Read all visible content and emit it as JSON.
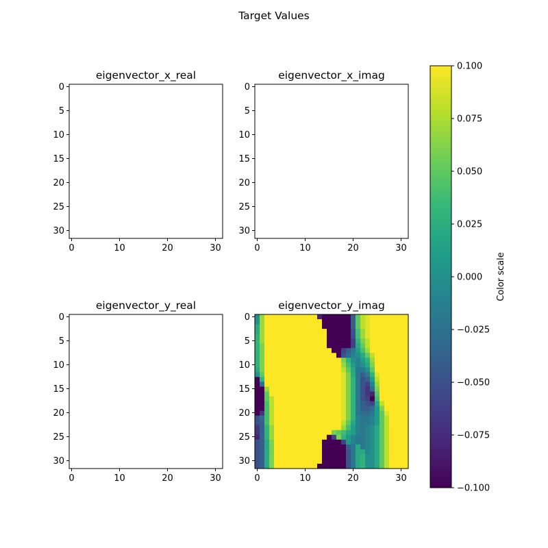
{
  "figure": {
    "suptitle": "Target Values"
  },
  "chart_data": [
    {
      "type": "heatmap",
      "title": "eigenvector_x_real",
      "grid_size": 32,
      "xticks": [
        0,
        10,
        20,
        30
      ],
      "yticks": [
        0,
        5,
        10,
        15,
        20,
        25,
        30
      ],
      "empty": true,
      "values": []
    },
    {
      "type": "heatmap",
      "title": "eigenvector_x_imag",
      "grid_size": 32,
      "xticks": [
        0,
        10,
        20,
        30
      ],
      "yticks": [
        0,
        5,
        10,
        15,
        20,
        25,
        30
      ],
      "empty": true,
      "values": []
    },
    {
      "type": "heatmap",
      "title": "eigenvector_y_real",
      "grid_size": 32,
      "xticks": [
        0,
        10,
        20,
        30
      ],
      "yticks": [
        0,
        5,
        10,
        15,
        20,
        25,
        30
      ],
      "empty": true,
      "values": []
    },
    {
      "type": "heatmap",
      "title": "eigenvector_y_imag",
      "grid_size": 32,
      "xticks": [
        0,
        10,
        20,
        30
      ],
      "yticks": [
        0,
        5,
        10,
        15,
        20,
        25,
        30
      ],
      "empty": false,
      "value_range": [
        -0.1,
        0.1
      ],
      "description": "32x32 grid of values clipped to [-0.1, 0.1]",
      "values": [
        [
          0.0,
          0.07,
          0.1,
          0.1,
          0.1,
          0.1,
          0.1,
          0.1,
          0.1,
          0.1,
          0.1,
          0.1,
          0.1,
          -0.08,
          -0.1,
          -0.1,
          -0.1,
          -0.1,
          -0.1,
          -0.1,
          -0.04,
          0.05,
          0.08,
          0.09,
          0.1,
          0.1,
          0.1,
          0.1,
          0.1,
          0.1,
          0.1,
          0.1
        ],
        [
          0.0,
          0.07,
          0.1,
          0.1,
          0.1,
          0.1,
          0.1,
          0.1,
          0.1,
          0.1,
          0.1,
          0.1,
          0.1,
          0.1,
          -0.1,
          -0.1,
          -0.1,
          -0.1,
          -0.1,
          -0.1,
          -0.04,
          0.05,
          0.08,
          0.09,
          0.1,
          0.1,
          0.1,
          0.1,
          0.1,
          0.1,
          0.1,
          0.1
        ],
        [
          0.02,
          0.07,
          0.1,
          0.1,
          0.1,
          0.1,
          0.1,
          0.1,
          0.1,
          0.1,
          0.1,
          0.1,
          0.1,
          0.1,
          -0.1,
          -0.1,
          -0.1,
          -0.1,
          -0.1,
          -0.1,
          -0.04,
          0.05,
          0.08,
          0.09,
          0.1,
          0.1,
          0.1,
          0.1,
          0.1,
          0.1,
          0.1,
          0.1
        ],
        [
          0.02,
          0.07,
          0.1,
          0.1,
          0.1,
          0.1,
          0.1,
          0.1,
          0.1,
          0.1,
          0.1,
          0.1,
          0.1,
          0.1,
          0.1,
          -0.1,
          -0.1,
          -0.1,
          -0.1,
          -0.1,
          -0.05,
          0.04,
          0.07,
          0.09,
          0.1,
          0.1,
          0.1,
          0.1,
          0.1,
          0.1,
          0.1,
          0.1
        ],
        [
          0.03,
          0.07,
          0.1,
          0.1,
          0.1,
          0.1,
          0.1,
          0.1,
          0.1,
          0.1,
          0.1,
          0.1,
          0.1,
          0.1,
          0.1,
          -0.1,
          -0.1,
          -0.1,
          -0.1,
          -0.1,
          -0.05,
          0.04,
          0.07,
          0.09,
          0.1,
          0.1,
          0.1,
          0.1,
          0.1,
          0.1,
          0.1,
          0.1
        ],
        [
          0.03,
          0.07,
          0.1,
          0.1,
          0.1,
          0.1,
          0.1,
          0.1,
          0.1,
          0.1,
          0.1,
          0.1,
          0.1,
          0.1,
          0.1,
          -0.1,
          -0.1,
          -0.1,
          -0.1,
          -0.1,
          -0.06,
          0.03,
          0.06,
          0.08,
          0.1,
          0.1,
          0.1,
          0.1,
          0.1,
          0.1,
          0.1,
          0.1
        ],
        [
          0.03,
          0.06,
          0.1,
          0.1,
          0.1,
          0.1,
          0.1,
          0.1,
          0.1,
          0.1,
          0.1,
          0.1,
          0.1,
          0.1,
          0.1,
          -0.1,
          -0.1,
          -0.1,
          -0.1,
          -0.1,
          -0.06,
          0.02,
          0.05,
          0.08,
          0.1,
          0.1,
          0.1,
          0.1,
          0.1,
          0.1,
          0.1,
          0.1
        ],
        [
          0.03,
          0.06,
          0.1,
          0.1,
          0.1,
          0.1,
          0.1,
          0.1,
          0.1,
          0.1,
          0.1,
          0.1,
          0.1,
          0.1,
          0.1,
          0.1,
          -0.1,
          -0.1,
          -0.06,
          -0.04,
          -0.02,
          0.01,
          0.04,
          0.07,
          0.1,
          0.1,
          0.1,
          0.1,
          0.1,
          0.1,
          0.1,
          0.1
        ],
        [
          0.03,
          0.06,
          0.1,
          0.1,
          0.1,
          0.1,
          0.1,
          0.1,
          0.1,
          0.1,
          0.1,
          0.1,
          0.1,
          0.1,
          0.1,
          0.1,
          0.1,
          -0.1,
          -0.05,
          -0.03,
          -0.01,
          0.0,
          0.02,
          0.05,
          0.08,
          0.1,
          0.1,
          0.1,
          0.1,
          0.1,
          0.1,
          0.1
        ],
        [
          0.03,
          0.06,
          0.1,
          0.1,
          0.1,
          0.1,
          0.1,
          0.1,
          0.1,
          0.1,
          0.1,
          0.1,
          0.1,
          0.1,
          0.1,
          0.1,
          0.1,
          0.1,
          0.06,
          0.03,
          0.0,
          -0.01,
          0.01,
          0.03,
          0.07,
          0.1,
          0.1,
          0.1,
          0.1,
          0.1,
          0.1,
          0.1
        ],
        [
          0.03,
          0.06,
          0.1,
          0.1,
          0.1,
          0.1,
          0.1,
          0.1,
          0.1,
          0.1,
          0.1,
          0.1,
          0.1,
          0.1,
          0.1,
          0.1,
          0.1,
          0.1,
          0.07,
          0.04,
          0.01,
          -0.01,
          0.0,
          0.02,
          0.06,
          0.1,
          0.1,
          0.1,
          0.1,
          0.1,
          0.1,
          0.1
        ],
        [
          0.02,
          0.06,
          0.1,
          0.1,
          0.1,
          0.1,
          0.1,
          0.1,
          0.1,
          0.1,
          0.1,
          0.1,
          0.1,
          0.1,
          0.1,
          0.1,
          0.1,
          0.1,
          0.08,
          0.05,
          0.02,
          -0.02,
          -0.02,
          0.0,
          0.05,
          0.1,
          0.1,
          0.1,
          0.1,
          0.1,
          0.1,
          0.1
        ],
        [
          0.0,
          0.05,
          0.1,
          0.1,
          0.1,
          0.1,
          0.1,
          0.1,
          0.1,
          0.1,
          0.1,
          0.1,
          0.1,
          0.1,
          0.1,
          0.1,
          0.1,
          0.1,
          0.09,
          0.06,
          0.02,
          -0.02,
          -0.04,
          -0.02,
          0.03,
          0.09,
          0.1,
          0.1,
          0.1,
          0.1,
          0.1,
          0.1
        ],
        [
          -0.1,
          0.03,
          0.1,
          0.1,
          0.1,
          0.1,
          0.1,
          0.1,
          0.1,
          0.1,
          0.1,
          0.1,
          0.1,
          0.1,
          0.1,
          0.1,
          0.1,
          0.1,
          0.09,
          0.06,
          0.03,
          -0.02,
          -0.05,
          -0.04,
          0.01,
          0.08,
          0.1,
          0.1,
          0.1,
          0.1,
          0.1,
          0.1
        ],
        [
          -0.1,
          -0.03,
          0.1,
          0.1,
          0.1,
          0.1,
          0.1,
          0.1,
          0.1,
          0.1,
          0.1,
          0.1,
          0.1,
          0.1,
          0.1,
          0.1,
          0.1,
          0.1,
          0.09,
          0.06,
          0.03,
          -0.02,
          -0.05,
          -0.06,
          -0.01,
          0.07,
          0.1,
          0.1,
          0.1,
          0.1,
          0.1,
          0.1
        ],
        [
          -0.1,
          -0.1,
          0.07,
          0.1,
          0.1,
          0.1,
          0.1,
          0.1,
          0.1,
          0.1,
          0.1,
          0.1,
          0.1,
          0.1,
          0.1,
          0.1,
          0.1,
          0.1,
          0.09,
          0.06,
          0.03,
          -0.02,
          -0.05,
          -0.07,
          -0.03,
          0.06,
          0.1,
          0.1,
          0.1,
          0.1,
          0.1,
          0.1
        ],
        [
          -0.1,
          -0.1,
          0.05,
          0.1,
          0.1,
          0.1,
          0.1,
          0.1,
          0.1,
          0.1,
          0.1,
          0.1,
          0.1,
          0.1,
          0.1,
          0.1,
          0.1,
          0.1,
          0.09,
          0.06,
          0.03,
          -0.02,
          -0.05,
          -0.07,
          -0.08,
          0.05,
          0.1,
          0.1,
          0.1,
          0.1,
          0.1,
          0.1
        ],
        [
          -0.1,
          -0.1,
          0.05,
          0.08,
          0.1,
          0.1,
          0.1,
          0.1,
          0.1,
          0.1,
          0.1,
          0.1,
          0.1,
          0.1,
          0.1,
          0.1,
          0.1,
          0.1,
          0.09,
          0.06,
          0.03,
          -0.02,
          -0.05,
          -0.06,
          -0.1,
          0.04,
          0.1,
          0.1,
          0.1,
          0.1,
          0.1,
          0.1
        ],
        [
          -0.1,
          -0.1,
          0.04,
          0.08,
          0.1,
          0.1,
          0.1,
          0.1,
          0.1,
          0.1,
          0.1,
          0.1,
          0.1,
          0.1,
          0.1,
          0.1,
          0.1,
          0.1,
          0.09,
          0.06,
          0.03,
          -0.02,
          -0.04,
          -0.05,
          -0.06,
          0.02,
          0.08,
          0.1,
          0.1,
          0.1,
          0.1,
          0.1
        ],
        [
          -0.1,
          -0.1,
          0.04,
          0.08,
          0.1,
          0.1,
          0.1,
          0.1,
          0.1,
          0.1,
          0.1,
          0.1,
          0.1,
          0.1,
          0.1,
          0.1,
          0.1,
          0.1,
          0.09,
          0.06,
          0.03,
          -0.02,
          -0.04,
          -0.04,
          -0.03,
          0.01,
          0.06,
          0.1,
          0.1,
          0.1,
          0.1,
          0.1
        ],
        [
          -0.1,
          -0.07,
          0.04,
          0.08,
          0.1,
          0.1,
          0.1,
          0.1,
          0.1,
          0.1,
          0.1,
          0.1,
          0.1,
          0.1,
          0.1,
          0.1,
          0.1,
          0.1,
          0.09,
          0.06,
          0.03,
          -0.02,
          -0.03,
          -0.03,
          -0.02,
          0.01,
          0.05,
          0.09,
          0.1,
          0.1,
          0.1,
          0.1
        ],
        [
          -0.05,
          -0.03,
          0.04,
          0.08,
          0.1,
          0.1,
          0.1,
          0.1,
          0.1,
          0.1,
          0.1,
          0.1,
          0.1,
          0.1,
          0.1,
          0.1,
          0.1,
          0.1,
          0.09,
          0.06,
          0.03,
          -0.01,
          -0.02,
          -0.02,
          -0.01,
          0.01,
          0.05,
          0.08,
          0.1,
          0.1,
          0.1,
          0.1
        ],
        [
          -0.05,
          -0.04,
          0.04,
          0.08,
          0.1,
          0.1,
          0.1,
          0.1,
          0.1,
          0.1,
          0.1,
          0.1,
          0.1,
          0.1,
          0.1,
          0.1,
          0.1,
          0.1,
          0.08,
          0.05,
          0.02,
          -0.01,
          -0.02,
          -0.02,
          -0.01,
          0.01,
          0.05,
          0.08,
          0.1,
          0.1,
          0.1,
          0.1
        ],
        [
          -0.07,
          -0.04,
          0.03,
          0.07,
          0.1,
          0.1,
          0.1,
          0.1,
          0.1,
          0.1,
          0.1,
          0.1,
          0.1,
          0.1,
          0.1,
          0.1,
          0.1,
          0.1,
          0.07,
          0.04,
          0.01,
          -0.01,
          -0.02,
          -0.01,
          0.0,
          0.02,
          0.05,
          0.08,
          0.1,
          0.1,
          0.1,
          0.1
        ],
        [
          -0.07,
          -0.04,
          0.03,
          0.07,
          0.1,
          0.1,
          0.1,
          0.1,
          0.1,
          0.1,
          0.1,
          0.1,
          0.1,
          0.1,
          0.1,
          0.1,
          0.06,
          0.05,
          0.04,
          0.02,
          0.01,
          -0.01,
          -0.02,
          -0.01,
          0.0,
          0.02,
          0.05,
          0.08,
          0.1,
          0.1,
          0.1,
          0.1
        ],
        [
          -0.08,
          -0.04,
          0.03,
          0.07,
          0.1,
          0.1,
          0.1,
          0.1,
          0.1,
          0.1,
          0.1,
          0.1,
          0.1,
          0.1,
          0.1,
          -0.1,
          -0.06,
          0.06,
          0.03,
          0.01,
          -0.01,
          -0.02,
          -0.02,
          -0.01,
          0.0,
          0.02,
          0.05,
          0.08,
          0.1,
          0.1,
          0.1,
          0.1
        ],
        [
          -0.05,
          -0.04,
          0.02,
          0.06,
          0.1,
          0.1,
          0.1,
          0.1,
          0.1,
          0.1,
          0.1,
          0.1,
          0.1,
          0.1,
          -0.1,
          -0.1,
          -0.1,
          -0.1,
          -0.06,
          0.01,
          -0.01,
          -0.02,
          -0.02,
          -0.01,
          0.0,
          0.02,
          0.05,
          0.08,
          0.1,
          0.1,
          0.1,
          0.1
        ],
        [
          -0.05,
          -0.04,
          0.02,
          0.06,
          0.1,
          0.1,
          0.1,
          0.1,
          0.1,
          0.1,
          0.1,
          0.1,
          0.1,
          0.1,
          -0.1,
          -0.1,
          -0.1,
          -0.1,
          -0.1,
          -0.04,
          -0.02,
          0.02,
          -0.02,
          -0.01,
          0.0,
          0.02,
          0.05,
          0.08,
          0.1,
          0.1,
          0.1,
          0.1
        ],
        [
          -0.05,
          -0.04,
          0.02,
          0.06,
          0.1,
          0.1,
          0.1,
          0.1,
          0.1,
          0.1,
          0.1,
          0.1,
          0.1,
          0.1,
          -0.1,
          -0.1,
          -0.1,
          -0.1,
          -0.1,
          -0.05,
          -0.02,
          0.02,
          0.02,
          -0.01,
          0.0,
          0.02,
          0.05,
          0.08,
          0.1,
          0.1,
          0.1,
          0.1
        ],
        [
          -0.05,
          -0.04,
          0.02,
          0.06,
          0.1,
          0.1,
          0.1,
          0.1,
          0.1,
          0.1,
          0.1,
          0.1,
          0.1,
          0.1,
          -0.1,
          -0.1,
          -0.1,
          -0.1,
          -0.1,
          -0.05,
          -0.02,
          0.02,
          0.03,
          0.0,
          0.0,
          0.02,
          0.05,
          0.08,
          0.1,
          0.1,
          0.1,
          0.1
        ],
        [
          -0.05,
          -0.04,
          0.02,
          0.06,
          0.1,
          0.1,
          0.1,
          0.1,
          0.1,
          0.1,
          0.1,
          0.1,
          0.1,
          0.1,
          -0.1,
          -0.1,
          -0.1,
          -0.1,
          -0.1,
          -0.05,
          -0.02,
          0.02,
          0.03,
          0.0,
          0.0,
          0.02,
          0.05,
          0.08,
          0.1,
          0.1,
          0.1,
          0.1
        ],
        [
          -0.05,
          -0.04,
          0.02,
          0.06,
          0.1,
          0.1,
          0.1,
          0.1,
          0.1,
          0.1,
          0.1,
          0.1,
          0.1,
          -0.1,
          -0.1,
          -0.1,
          -0.1,
          -0.1,
          -0.1,
          -0.05,
          -0.02,
          0.02,
          0.03,
          0.0,
          0.0,
          0.02,
          0.05,
          0.08,
          0.1,
          0.1,
          0.1,
          0.1
        ]
      ]
    }
  ],
  "colorbar": {
    "label": "Color scale",
    "min": -0.1,
    "max": 0.1,
    "tick_values": [
      -0.1,
      -0.075,
      -0.05,
      -0.025,
      0.0,
      0.025,
      0.05,
      0.075,
      0.1
    ],
    "tick_labels": [
      "−0.100",
      "−0.075",
      "−0.050",
      "−0.025",
      "0.000",
      "0.025",
      "0.050",
      "0.075",
      "0.100"
    ],
    "colormap": "viridis",
    "colormap_stops": [
      "#440154",
      "#482878",
      "#3e4989",
      "#31688e",
      "#26828e",
      "#1f9e89",
      "#35b779",
      "#6ece58",
      "#b5de2b",
      "#fde725"
    ]
  }
}
